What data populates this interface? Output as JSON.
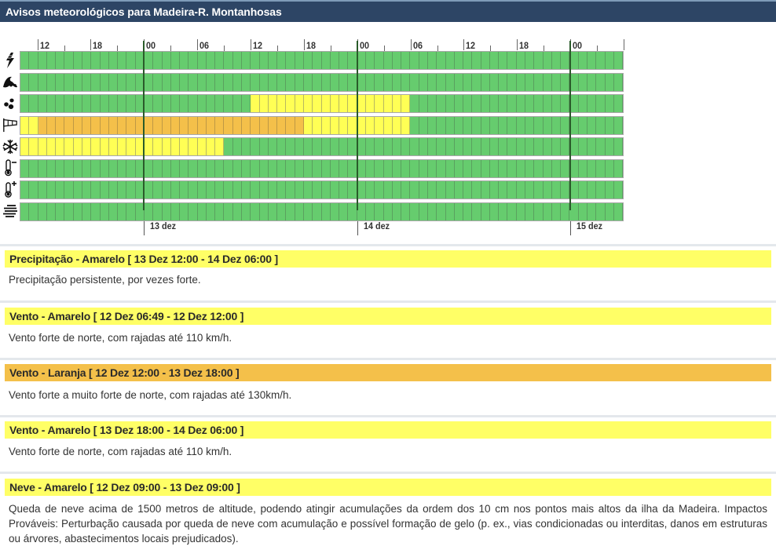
{
  "title": "Avisos meteorológicos para Madeira-R. Montanhosas",
  "chart_data": {
    "type": "heatmap",
    "title": "Avisos meteorológicos para Madeira-R. Montanhosas",
    "x_unit": "hour",
    "start": "12 dez 10:00",
    "hours": 68,
    "hour_tick_labels": [
      "12",
      "18",
      "00",
      "06",
      "12",
      "18",
      "00",
      "06",
      "12",
      "18",
      "00"
    ],
    "day_labels": [
      "13 dez",
      "14 dez",
      "15 dez"
    ],
    "levels": {
      "g": "Verde",
      "y": "Amarelo",
      "o": "Laranja"
    },
    "colors": {
      "g": "#66cc6e",
      "y": "#ffff55",
      "o": "#f4c04a"
    },
    "rows": [
      {
        "name": "Trovoada",
        "icon": "lightning-icon",
        "segments": [
          {
            "level": "g",
            "hours": 68
          }
        ]
      },
      {
        "name": "Agitação marítima",
        "icon": "wave-icon",
        "segments": [
          {
            "level": "g",
            "hours": 68
          }
        ]
      },
      {
        "name": "Precipitação",
        "icon": "raindrops-icon",
        "segments": [
          {
            "level": "g",
            "hours": 26
          },
          {
            "level": "y",
            "hours": 18
          },
          {
            "level": "g",
            "hours": 24
          }
        ]
      },
      {
        "name": "Vento",
        "icon": "windsock-icon",
        "segments": [
          {
            "level": "y",
            "hours": 2
          },
          {
            "level": "o",
            "hours": 30
          },
          {
            "level": "y",
            "hours": 12
          },
          {
            "level": "g",
            "hours": 24
          }
        ]
      },
      {
        "name": "Neve",
        "icon": "snowflake-icon",
        "segments": [
          {
            "level": "y",
            "hours": 23
          },
          {
            "level": "g",
            "hours": 45
          }
        ]
      },
      {
        "name": "Tempo frio",
        "icon": "thermometer-minus-icon",
        "segments": [
          {
            "level": "g",
            "hours": 68
          }
        ]
      },
      {
        "name": "Tempo quente",
        "icon": "thermometer-plus-icon",
        "segments": [
          {
            "level": "g",
            "hours": 68
          }
        ]
      },
      {
        "name": "Nevoeiro",
        "icon": "fog-icon",
        "segments": [
          {
            "level": "g",
            "hours": 68
          }
        ]
      }
    ]
  },
  "warnings": [
    {
      "header": "Precipitação - Amarelo [ 13 Dez 12:00 - 14 Dez 06:00 ]",
      "level": "yellow",
      "text": "Precipitação persistente, por vezes forte."
    },
    {
      "header": "Vento - Amarelo [ 12 Dez 06:49 - 12 Dez 12:00 ]",
      "level": "yellow",
      "text": "Vento forte de norte, com rajadas até 110 km/h."
    },
    {
      "header": "Vento - Laranja [ 12 Dez 12:00 - 13 Dez 18:00 ]",
      "level": "orange",
      "text": "Vento forte a muito forte de norte, com rajadas até 130km/h."
    },
    {
      "header": "Vento - Amarelo [ 13 Dez 18:00 - 14 Dez 06:00 ]",
      "level": "yellow",
      "text": "Vento forte de norte, com rajadas até 110 km/h."
    },
    {
      "header": "Neve - Amarelo [ 12 Dez 09:00 - 13 Dez 09:00 ]",
      "level": "yellow",
      "text": "Queda de neve acima de 1500 metros de altitude, podendo atingir acumulações da ordem dos 10 cm nos pontos mais altos da ilha da Madeira. Impactos Prováveis: Perturbação causada por queda de neve com acumulação e possível formação de gelo (p. ex., vias condicionadas ou interditas, danos em estruturas ou árvores, abastecimentos locais prejudicados)."
    }
  ]
}
